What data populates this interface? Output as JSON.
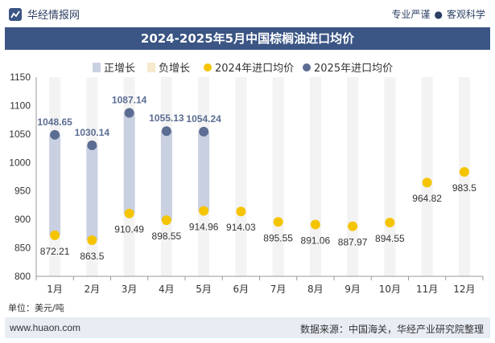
{
  "header": {
    "brand": "华经情报网",
    "slogan_left": "专业严谨",
    "slogan_sep": "●",
    "slogan_right": "客观科学"
  },
  "footer": {
    "unit": "单位：美元/吨",
    "url": "www.huaon.com",
    "source": "数据来源：中国海关，华经产业研究院整理"
  },
  "colors": {
    "title_bg": "#3b5584",
    "bar_positive": "#c9d0e1",
    "bar_negative": "#f6e9cc",
    "dot_2024": "#f5c400",
    "dot_2025": "#5b6d93"
  },
  "chart_data": {
    "type": "bar+scatter",
    "title": "2024-2025年5月中国棕榈油进口均价",
    "categories": [
      "1月",
      "2月",
      "3月",
      "4月",
      "5月",
      "6月",
      "7月",
      "8月",
      "9月",
      "10月",
      "11月",
      "12月"
    ],
    "ylim": [
      800,
      1150
    ],
    "yticks": [
      800,
      850,
      900,
      950,
      1000,
      1050,
      1100,
      1150
    ],
    "legend": {
      "placement": "top",
      "items": [
        {
          "label": "正增长",
          "kind": "bar",
          "color": "#c9d0e1"
        },
        {
          "label": "负增长",
          "kind": "bar",
          "color": "#f6e9cc"
        },
        {
          "label": "2024年进口均价",
          "kind": "dot",
          "color": "#f5c400"
        },
        {
          "label": "2025年进口均价",
          "kind": "dot",
          "color": "#5b6d93"
        }
      ]
    },
    "series": [
      {
        "name": "2024年进口均价",
        "values": [
          872.21,
          863.5,
          910.49,
          898.55,
          914.96,
          914.03,
          895.55,
          891.06,
          887.97,
          894.55,
          964.82,
          983.5
        ]
      },
      {
        "name": "2025年进口均价",
        "values": [
          1048.65,
          1030.14,
          1087.14,
          1055.13,
          1054.24,
          null,
          null,
          null,
          null,
          null,
          null,
          null
        ]
      }
    ],
    "labels_2024": [
      "872.21",
      "863.5",
      "910.49",
      "898.55",
      "914.96",
      "914.03",
      "895.55",
      "891.06",
      "887.97",
      "894.55",
      "964.82",
      "983.5"
    ],
    "labels_2025": [
      "1048.65",
      "1030.14",
      "1087.14",
      "1055.13",
      "1054.24"
    ],
    "grid": false
  }
}
